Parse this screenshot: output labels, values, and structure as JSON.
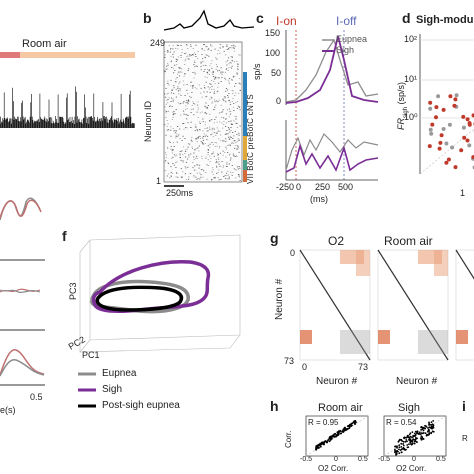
{
  "panels": {
    "a": {
      "bar_label": "Room air"
    },
    "b": {
      "letter": "b",
      "ylabel": "Neuron ID",
      "ytick_top": "249",
      "ytick_bottom": "1",
      "scalebar": "250ms",
      "regions": [
        "cNTS",
        "preBötC",
        "BötC",
        "VII"
      ],
      "regions_label": "VII BötC preBötC cNTS"
    },
    "c": {
      "letter": "c",
      "ion": "I-on",
      "ioff": "I-off",
      "ylabel": "sp/s",
      "yticks_top": [
        "150",
        "100",
        "50",
        "0"
      ],
      "legend": [
        "Eupnea",
        "Sigh"
      ],
      "xticks": [
        "-250",
        "0",
        "250",
        "500"
      ],
      "xlabel": "(ms)"
    },
    "d": {
      "letter": "d",
      "title": "Sigh-modu",
      "ylabel": "FR",
      "ylabel_sub": "sigh",
      "ylabel_unit": "(sp/s)",
      "yticks": [
        "10²",
        "10¹",
        "10⁰"
      ],
      "xtick_partial": "1"
    },
    "e": {
      "xtick_partial": "0.5",
      "xlabel_partial": "e(s)"
    },
    "f": {
      "letter": "f",
      "axes": [
        "PC3",
        "PC2",
        "PC1"
      ],
      "legend": [
        "Eupnea",
        "Sigh",
        "Post-sigh eupnea"
      ]
    },
    "g": {
      "letter": "g",
      "titles": [
        "O2",
        "Room air"
      ],
      "ylabel": "Neuron #",
      "xlabel": "Neuron #",
      "tick0": "0",
      "tick73": "73"
    },
    "h": {
      "letter": "h",
      "titles": [
        "Room air",
        "Sigh"
      ],
      "r_values": [
        "R = 0.95",
        "R = 0.54"
      ],
      "ylabel": "Corr.",
      "xlabel": "O2 Corr.",
      "xticks": [
        "-0.5",
        "0",
        "0.5"
      ]
    },
    "i": {
      "letter": "i",
      "ylabel_partial": "R"
    }
  },
  "colors": {
    "eupnea": "#8c8c8c",
    "sigh": "#7a2e96",
    "post_sigh": "#000000",
    "ion": "#c0392b",
    "ioff": "#5b6ab5",
    "roomair_bar": "#f6c9a4",
    "o2_bar": "#e07a7a"
  }
}
